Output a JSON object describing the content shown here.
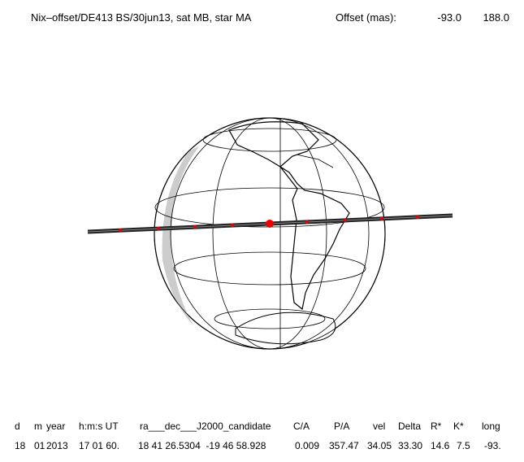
{
  "header": {
    "title": "Nix–offset/DE413 BS/30jun13, sat MB, star MA",
    "offset_label": "Offset (mas):",
    "offset_x": "-93.0",
    "offset_y": "188.0"
  },
  "table": {
    "columns": [
      "d",
      "m",
      "year",
      "h:m:s UT",
      "ra___dec___J2000_candidate",
      "C/A",
      "P/A",
      "vel",
      "Delta",
      "R*",
      "K*",
      "long"
    ],
    "rows": [
      [
        "18",
        "01",
        "2013",
        "17 01 60.",
        "18 41 26.5304  -19 46 58.928",
        "0.009",
        "357.47",
        "34.05",
        "33.30",
        "14.6",
        "7.5",
        "-93."
      ]
    ]
  }
}
